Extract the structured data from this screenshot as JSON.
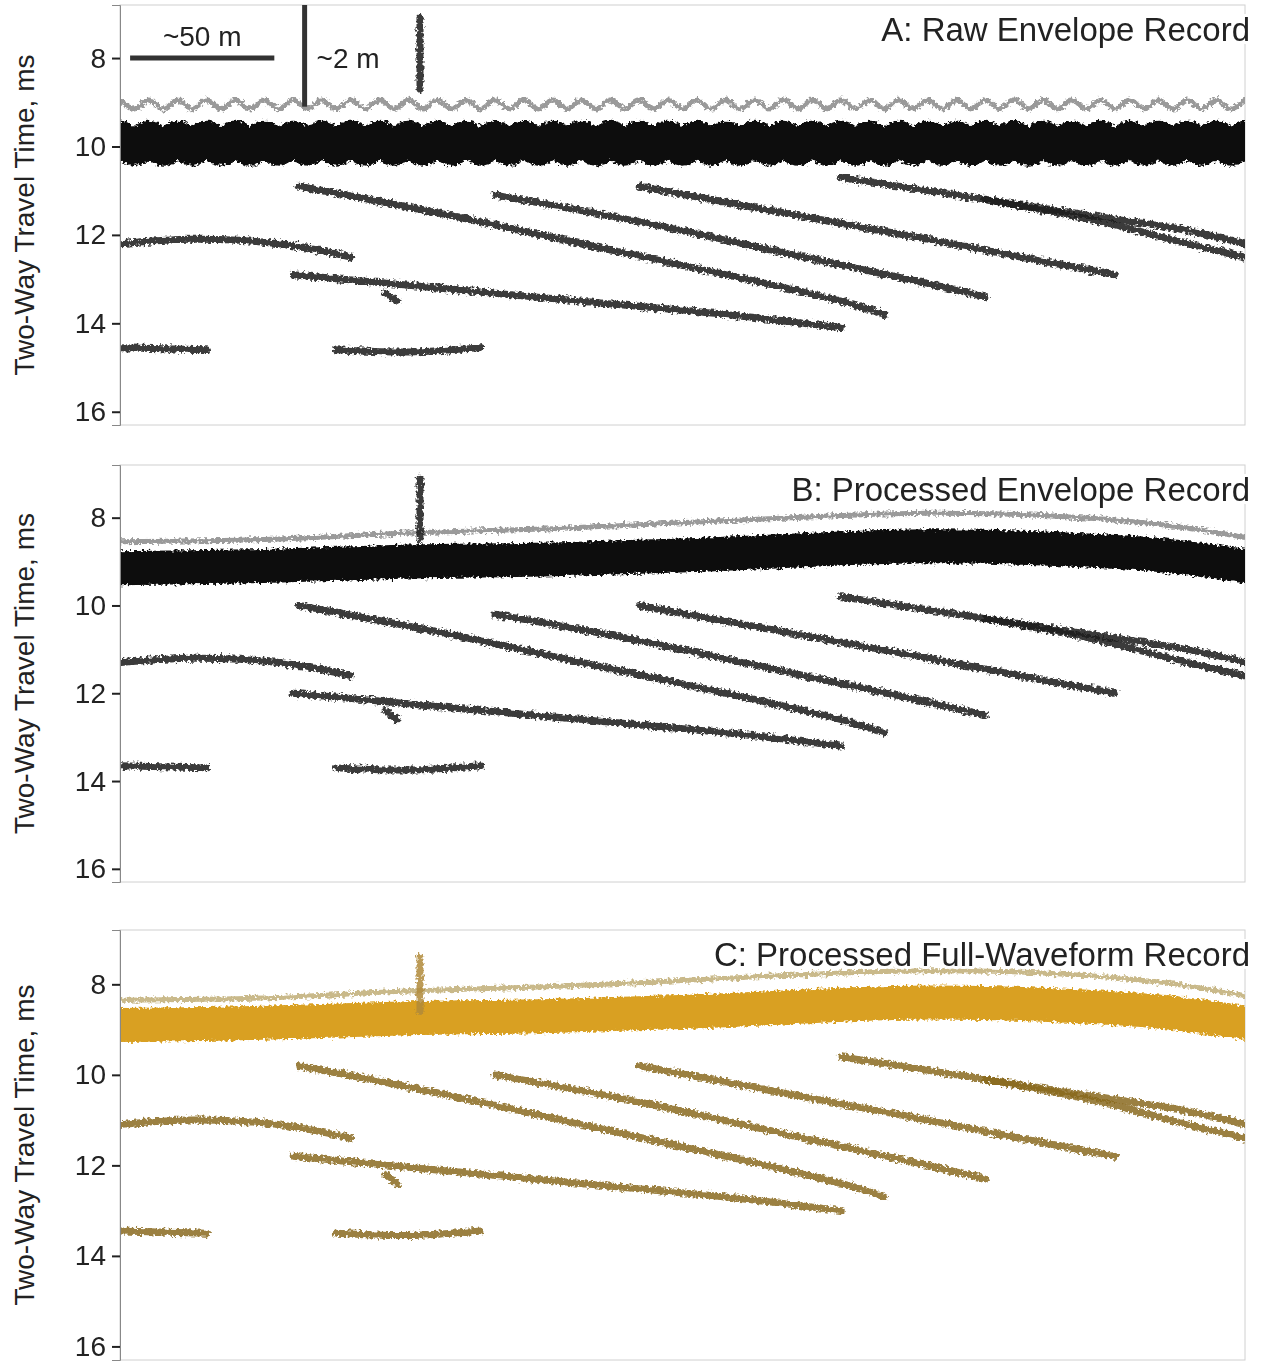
{
  "chart_data": [
    {
      "type": "line",
      "title": "A: Raw Envelope Record",
      "ylabel": "Two-Way Travel Time, ms",
      "xlim": [
        0,
        390
      ],
      "ylim": [
        6.8,
        16.3
      ],
      "yticks": [
        8,
        10,
        12,
        14,
        16
      ],
      "tick_labels": "y",
      "scale_bars": [
        {
          "label": "~50 m",
          "x": [
            3.5,
            53.5
          ],
          "y": [
            8.0,
            8.0
          ]
        },
        {
          "label": "~2 m",
          "x": [
            64,
            64
          ],
          "y": [
            6.8,
            9.1
          ]
        }
      ],
      "series": [
        {
          "color": "#9a9a9a",
          "line_style": "thin",
          "x": [
            0,
            5,
            10,
            15,
            20,
            25,
            30,
            35,
            40,
            45,
            50,
            55,
            60,
            65,
            70,
            75,
            80,
            85,
            90,
            95,
            100,
            105,
            110,
            115,
            120,
            125,
            130,
            135,
            140,
            145,
            150,
            155,
            160,
            165,
            170,
            175,
            180,
            185,
            190,
            195,
            200,
            205,
            210,
            215,
            220,
            225,
            230,
            235,
            240,
            245,
            250,
            255,
            260,
            265,
            270,
            275,
            280,
            285,
            290,
            295,
            300,
            305,
            310,
            315,
            320,
            325,
            330,
            335,
            340,
            345,
            350,
            355,
            360,
            365,
            370,
            375,
            380,
            385,
            390
          ],
          "values": [
            8.95,
            9.15,
            8.95,
            9.15,
            8.95,
            9.15,
            8.95,
            9.15,
            8.95,
            9.15,
            8.95,
            9.15,
            8.95,
            9.15,
            8.95,
            9.15,
            8.95,
            9.15,
            8.95,
            9.15,
            8.95,
            9.15,
            8.95,
            9.15,
            8.95,
            9.15,
            8.95,
            9.15,
            8.95,
            9.15,
            8.95,
            9.15,
            8.95,
            9.15,
            8.95,
            9.15,
            8.95,
            9.15,
            8.95,
            9.15,
            8.95,
            9.15,
            8.95,
            9.15,
            8.95,
            9.15,
            8.95,
            9.15,
            8.95,
            9.15,
            8.95,
            9.15,
            8.95,
            9.15,
            8.95,
            9.15,
            8.95,
            9.15,
            8.95,
            9.15,
            8.95,
            9.15,
            8.95,
            9.15,
            8.95,
            9.15,
            8.95,
            9.15,
            8.95,
            9.15,
            8.95,
            9.15,
            8.95,
            9.15,
            8.95,
            9.15,
            8.95,
            9.15,
            8.95
          ]
        },
        {
          "color": "#0a0a0a",
          "line_style": "heavy",
          "x": [
            0,
            5,
            10,
            15,
            20,
            25,
            30,
            35,
            40,
            45,
            50,
            55,
            60,
            65,
            70,
            75,
            80,
            85,
            90,
            95,
            100,
            105,
            110,
            115,
            120,
            125,
            130,
            135,
            140,
            145,
            150,
            155,
            160,
            165,
            170,
            175,
            180,
            185,
            190,
            195,
            200,
            205,
            210,
            215,
            220,
            225,
            230,
            235,
            240,
            245,
            250,
            255,
            260,
            265,
            270,
            275,
            280,
            285,
            290,
            295,
            300,
            305,
            310,
            315,
            320,
            325,
            330,
            335,
            340,
            345,
            350,
            355,
            360,
            365,
            370,
            375,
            380,
            385,
            390
          ],
          "values": [
            9.8,
            10.05,
            9.8,
            10.05,
            9.8,
            10.05,
            9.8,
            10.05,
            9.8,
            10.05,
            9.8,
            10.05,
            9.8,
            10.05,
            9.8,
            10.05,
            9.8,
            10.05,
            9.8,
            10.05,
            9.8,
            10.05,
            9.8,
            10.05,
            9.8,
            10.05,
            9.8,
            10.05,
            9.8,
            10.05,
            9.8,
            10.05,
            9.8,
            10.05,
            9.8,
            10.05,
            9.8,
            10.05,
            9.8,
            10.05,
            9.8,
            10.05,
            9.8,
            10.05,
            9.8,
            10.05,
            9.8,
            10.05,
            9.8,
            10.05,
            9.8,
            10.05,
            9.8,
            10.05,
            9.8,
            10.05,
            9.8,
            10.05,
            9.8,
            10.05,
            9.8,
            10.05,
            9.8,
            10.05,
            9.8,
            10.05,
            9.8,
            10.05,
            9.8,
            10.05,
            9.8,
            10.05,
            9.8,
            10.05,
            9.8,
            10.05,
            9.8,
            10.05,
            9.8
          ]
        },
        {
          "color": "#1a1a1a",
          "line_style": "solid",
          "x": [
            104,
            104
          ],
          "values": [
            7.1,
            8.7
          ]
        },
        {
          "color": "#1a1a1a",
          "line_style": "solid",
          "x": [
            0,
            25,
            55,
            80
          ],
          "values": [
            12.2,
            12.1,
            12.2,
            12.5
          ]
        },
        {
          "color": "#1a1a1a",
          "line_style": "solid",
          "x": [
            62,
            110,
            160,
            210,
            250,
            265
          ],
          "values": [
            10.9,
            11.5,
            12.2,
            12.9,
            13.5,
            13.8
          ]
        },
        {
          "color": "#1a1a1a",
          "line_style": "solid",
          "x": [
            130,
            180,
            230,
            280,
            300
          ],
          "values": [
            11.1,
            11.7,
            12.4,
            13.1,
            13.4
          ]
        },
        {
          "color": "#1a1a1a",
          "line_style": "solid",
          "x": [
            180,
            230,
            280,
            320,
            345
          ],
          "values": [
            10.9,
            11.5,
            12.1,
            12.6,
            12.9
          ]
        },
        {
          "color": "#1a1a1a",
          "line_style": "solid",
          "x": [
            60,
            110,
            160,
            210,
            250
          ],
          "values": [
            12.9,
            13.2,
            13.5,
            13.8,
            14.1
          ]
        },
        {
          "color": "#1a1a1a",
          "line_style": "solid",
          "x": [
            0,
            30,
            50,
            75,
            100,
            125
          ],
          "values": [
            14.55,
            14.6,
            null,
            14.6,
            14.65,
            14.55
          ]
        },
        {
          "color": "#1a1a1a",
          "line_style": "solid",
          "x": [
            250,
            290,
            330,
            370,
            390
          ],
          "values": [
            10.7,
            11.1,
            11.5,
            11.9,
            12.2
          ]
        },
        {
          "color": "#1a1a1a",
          "line_style": "solid",
          "x": [
            300,
            340,
            370,
            390
          ],
          "values": [
            11.2,
            11.7,
            12.2,
            12.5
          ]
        },
        {
          "color": "#1a1a1a",
          "line_style": "solid",
          "x": [
            92,
            96
          ],
          "values": [
            13.3,
            13.5
          ]
        }
      ]
    },
    {
      "type": "line",
      "title": "B: Processed Envelope Record",
      "ylabel": "Two-Way Travel Time, ms",
      "xlim": [
        0,
        390
      ],
      "ylim": [
        6.8,
        16.3
      ],
      "yticks": [
        8,
        10,
        12,
        14,
        16
      ],
      "tick_labels": "y",
      "series": [
        {
          "color": "#9a9a9a",
          "line_style": "thin",
          "x": [
            0,
            50,
            100,
            150,
            200,
            250,
            280,
            320,
            360,
            390
          ],
          "values": [
            8.55,
            8.5,
            8.35,
            8.25,
            8.1,
            7.95,
            7.9,
            7.95,
            8.15,
            8.45
          ]
        },
        {
          "color": "#0a0a0a",
          "line_style": "heavy",
          "x": [
            0,
            50,
            100,
            150,
            200,
            250,
            280,
            320,
            360,
            390
          ],
          "values": [
            9.15,
            9.1,
            9.0,
            8.95,
            8.85,
            8.7,
            8.65,
            8.7,
            8.85,
            9.1
          ]
        },
        {
          "color": "#1a1a1a",
          "line_style": "solid",
          "x": [
            104,
            104
          ],
          "values": [
            7.1,
            8.5
          ]
        },
        {
          "color": "#1a1a1a",
          "line_style": "solid",
          "x": [
            0,
            25,
            55,
            80
          ],
          "values": [
            11.3,
            11.2,
            11.3,
            11.6
          ]
        },
        {
          "color": "#1a1a1a",
          "line_style": "solid",
          "x": [
            62,
            110,
            160,
            210,
            250,
            265
          ],
          "values": [
            10.0,
            10.6,
            11.3,
            12.0,
            12.6,
            12.9
          ]
        },
        {
          "color": "#1a1a1a",
          "line_style": "solid",
          "x": [
            130,
            180,
            230,
            280,
            300
          ],
          "values": [
            10.2,
            10.8,
            11.5,
            12.2,
            12.5
          ]
        },
        {
          "color": "#1a1a1a",
          "line_style": "solid",
          "x": [
            180,
            230,
            280,
            320,
            345
          ],
          "values": [
            10.0,
            10.6,
            11.2,
            11.7,
            12.0
          ]
        },
        {
          "color": "#1a1a1a",
          "line_style": "solid",
          "x": [
            60,
            110,
            160,
            210,
            250
          ],
          "values": [
            12.0,
            12.3,
            12.6,
            12.9,
            13.2
          ]
        },
        {
          "color": "#1a1a1a",
          "line_style": "solid",
          "x": [
            0,
            30,
            50,
            75,
            100,
            125
          ],
          "values": [
            13.65,
            13.7,
            null,
            13.7,
            13.75,
            13.65
          ]
        },
        {
          "color": "#1a1a1a",
          "line_style": "solid",
          "x": [
            250,
            290,
            330,
            370,
            390
          ],
          "values": [
            9.8,
            10.2,
            10.6,
            11.0,
            11.3
          ]
        },
        {
          "color": "#1a1a1a",
          "line_style": "solid",
          "x": [
            300,
            340,
            370,
            390
          ],
          "values": [
            10.3,
            10.8,
            11.3,
            11.6
          ]
        },
        {
          "color": "#1a1a1a",
          "line_style": "solid",
          "x": [
            92,
            96
          ],
          "values": [
            12.4,
            12.6
          ]
        }
      ]
    },
    {
      "type": "line",
      "title": "C: Processed Full-Waveform Record",
      "ylabel": "Two-Way Travel Time, ms",
      "xlim": [
        0,
        390
      ],
      "ylim": [
        6.8,
        16.3
      ],
      "yticks": [
        8,
        10,
        12,
        14,
        16
      ],
      "tick_labels": "y",
      "series": [
        {
          "color": "#c9b98a",
          "line_style": "thin",
          "x": [
            0,
            50,
            100,
            150,
            200,
            250,
            280,
            320,
            360,
            390
          ],
          "values": [
            8.35,
            8.3,
            8.15,
            8.05,
            7.9,
            7.75,
            7.7,
            7.75,
            7.95,
            8.25
          ]
        },
        {
          "color": "#d9a021",
          "line_style": "heavy",
          "x": [
            0,
            50,
            100,
            150,
            200,
            250,
            280,
            320,
            360,
            390
          ],
          "values": [
            8.9,
            8.85,
            8.75,
            8.7,
            8.6,
            8.45,
            8.4,
            8.45,
            8.6,
            8.85
          ]
        },
        {
          "color": "#b08a3a",
          "line_style": "solid",
          "x": [
            104,
            104
          ],
          "values": [
            7.4,
            8.6
          ]
        },
        {
          "color": "#8a6a1e",
          "line_style": "solid",
          "x": [
            0,
            25,
            55,
            80
          ],
          "values": [
            11.1,
            11.0,
            11.1,
            11.4
          ]
        },
        {
          "color": "#8a6a1e",
          "line_style": "solid",
          "x": [
            62,
            110,
            160,
            210,
            250,
            265
          ],
          "values": [
            9.8,
            10.4,
            11.1,
            11.8,
            12.4,
            12.7
          ]
        },
        {
          "color": "#8a6a1e",
          "line_style": "solid",
          "x": [
            130,
            180,
            230,
            280,
            300
          ],
          "values": [
            10.0,
            10.6,
            11.3,
            12.0,
            12.3
          ]
        },
        {
          "color": "#8a6a1e",
          "line_style": "solid",
          "x": [
            180,
            230,
            280,
            320,
            345
          ],
          "values": [
            9.8,
            10.4,
            11.0,
            11.5,
            11.8
          ]
        },
        {
          "color": "#8a6a1e",
          "line_style": "solid",
          "x": [
            60,
            110,
            160,
            210,
            250
          ],
          "values": [
            11.8,
            12.1,
            12.4,
            12.7,
            13.0
          ]
        },
        {
          "color": "#8a6a1e",
          "line_style": "solid",
          "x": [
            0,
            30,
            50,
            75,
            100,
            125
          ],
          "values": [
            13.45,
            13.5,
            null,
            13.5,
            13.55,
            13.45
          ]
        },
        {
          "color": "#8a6a1e",
          "line_style": "solid",
          "x": [
            250,
            290,
            330,
            370,
            390
          ],
          "values": [
            9.6,
            10.0,
            10.4,
            10.8,
            11.1
          ]
        },
        {
          "color": "#8a6a1e",
          "line_style": "solid",
          "x": [
            300,
            340,
            370,
            390
          ],
          "values": [
            10.1,
            10.6,
            11.1,
            11.4
          ]
        },
        {
          "color": "#8a6a1e",
          "line_style": "solid",
          "x": [
            92,
            96
          ],
          "values": [
            12.2,
            12.4
          ]
        }
      ]
    }
  ]
}
